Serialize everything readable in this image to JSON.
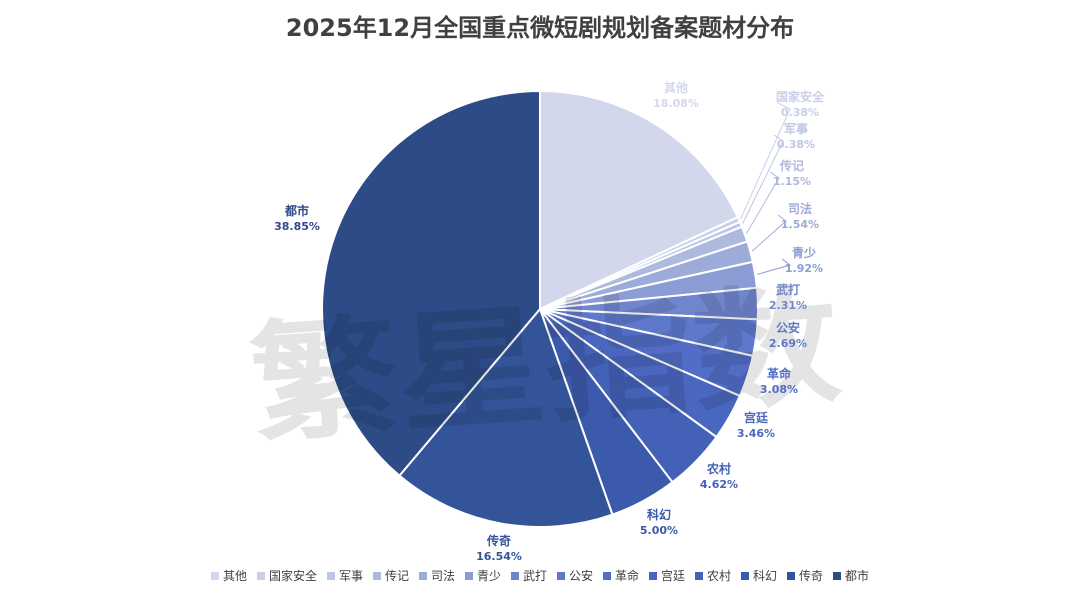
{
  "chart_data": {
    "type": "pie",
    "title": "2025年12月全国重点微短剧规划备案题材分布",
    "legend_position": "bottom",
    "slices": [
      {
        "name": "其他",
        "value": 18.08,
        "label": "18.08%",
        "color": "#D3D7EC"
      },
      {
        "name": "国家安全",
        "value": 0.38,
        "label": "0.38%",
        "color": "#C9CFE8"
      },
      {
        "name": "军事",
        "value": 0.38,
        "label": "0.38%",
        "color": "#BEC7E4"
      },
      {
        "name": "传记",
        "value": 1.15,
        "label": "1.15%",
        "color": "#AEB9DE"
      },
      {
        "name": "司法",
        "value": 1.54,
        "label": "1.54%",
        "color": "#9DABD8"
      },
      {
        "name": "青少",
        "value": 1.92,
        "label": "1.92%",
        "color": "#8B9DD4"
      },
      {
        "name": "武打",
        "value": 2.31,
        "label": "2.31%",
        "color": "#6F86CF"
      },
      {
        "name": "公安",
        "value": 2.69,
        "label": "2.69%",
        "color": "#5E78CB"
      },
      {
        "name": "革命",
        "value": 3.08,
        "label": "3.08%",
        "color": "#526DC6"
      },
      {
        "name": "宫廷",
        "value": 3.46,
        "label": "3.46%",
        "color": "#4A67C0"
      },
      {
        "name": "农村",
        "value": 4.62,
        "label": "4.62%",
        "color": "#4361B7"
      },
      {
        "name": "科幻",
        "value": 5.0,
        "label": "5.00%",
        "color": "#3C5AAB"
      },
      {
        "name": "传奇",
        "value": 16.54,
        "label": "16.54%",
        "color": "#34549A"
      },
      {
        "name": "都市",
        "value": 38.85,
        "label": "38.85%",
        "color": "#2D4B86"
      }
    ]
  },
  "watermark": "繁星指数"
}
